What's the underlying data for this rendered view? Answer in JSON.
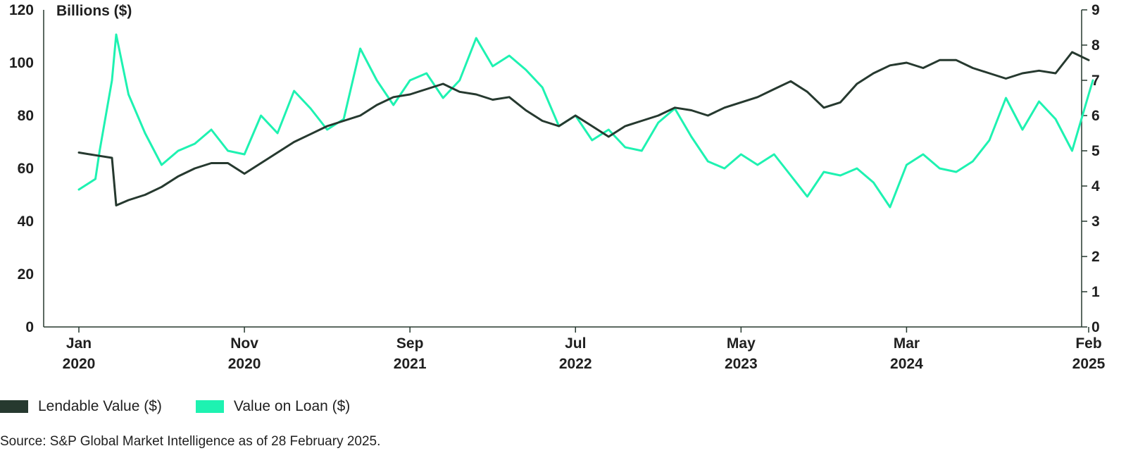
{
  "chart_data": {
    "type": "line",
    "y_axis_label": "Billions ($)",
    "y_left": {
      "min": 0,
      "max": 120,
      "ticks": [
        "0",
        "20",
        "40",
        "60",
        "80",
        "100",
        "120"
      ]
    },
    "y_right": {
      "min": 0,
      "max": 9,
      "ticks": [
        "0",
        "1",
        "2",
        "3",
        "4",
        "5",
        "6",
        "7",
        "8",
        "9"
      ]
    },
    "x_ticks": [
      {
        "date": "2020-01",
        "month": "Jan",
        "year": "2020"
      },
      {
        "date": "2020-11",
        "month": "Nov",
        "year": "2020"
      },
      {
        "date": "2021-09",
        "month": "Sep",
        "year": "2021"
      },
      {
        "date": "2022-07",
        "month": "Jul",
        "year": "2022"
      },
      {
        "date": "2023-05",
        "month": "May",
        "year": "2023"
      },
      {
        "date": "2024-03",
        "month": "Mar",
        "year": "2024"
      },
      {
        "date": "2025-02",
        "month": "Feb",
        "year": "2025"
      }
    ],
    "x_range": [
      "2020-01",
      "2025-02"
    ],
    "series": [
      {
        "name": "Lendable Value ($)",
        "axis": "left",
        "color": "#26392f",
        "points": [
          [
            "2020-01",
            66
          ],
          [
            "2020-02",
            65
          ],
          [
            "2020-03",
            64
          ],
          [
            "2020-03",
            46
          ],
          [
            "2020-04",
            48
          ],
          [
            "2020-05",
            50
          ],
          [
            "2020-06",
            53
          ],
          [
            "2020-07",
            57
          ],
          [
            "2020-08",
            60
          ],
          [
            "2020-09",
            62
          ],
          [
            "2020-10",
            62
          ],
          [
            "2020-11",
            58
          ],
          [
            "2020-12",
            62
          ],
          [
            "2021-01",
            66
          ],
          [
            "2021-02",
            70
          ],
          [
            "2021-03",
            73
          ],
          [
            "2021-04",
            76
          ],
          [
            "2021-05",
            78
          ],
          [
            "2021-06",
            80
          ],
          [
            "2021-07",
            84
          ],
          [
            "2021-08",
            87
          ],
          [
            "2021-09",
            88
          ],
          [
            "2021-10",
            90
          ],
          [
            "2021-11",
            92
          ],
          [
            "2021-12",
            89
          ],
          [
            "2022-01",
            88
          ],
          [
            "2022-02",
            86
          ],
          [
            "2022-03",
            87
          ],
          [
            "2022-04",
            82
          ],
          [
            "2022-05",
            78
          ],
          [
            "2022-06",
            76
          ],
          [
            "2022-07",
            80
          ],
          [
            "2022-08",
            76
          ],
          [
            "2022-09",
            72
          ],
          [
            "2022-10",
            76
          ],
          [
            "2022-11",
            78
          ],
          [
            "2022-12",
            80
          ],
          [
            "2023-01",
            83
          ],
          [
            "2023-02",
            82
          ],
          [
            "2023-03",
            80
          ],
          [
            "2023-04",
            83
          ],
          [
            "2023-05",
            85
          ],
          [
            "2023-06",
            87
          ],
          [
            "2023-07",
            90
          ],
          [
            "2023-08",
            93
          ],
          [
            "2023-09",
            89
          ],
          [
            "2023-10",
            83
          ],
          [
            "2023-11",
            85
          ],
          [
            "2023-12",
            92
          ],
          [
            "2024-01",
            96
          ],
          [
            "2024-02",
            99
          ],
          [
            "2024-03",
            100
          ],
          [
            "2024-04",
            98
          ],
          [
            "2024-05",
            101
          ],
          [
            "2024-06",
            101
          ],
          [
            "2024-07",
            98
          ],
          [
            "2024-08",
            96
          ],
          [
            "2024-09",
            94
          ],
          [
            "2024-10",
            96
          ],
          [
            "2024-11",
            97
          ],
          [
            "2024-12",
            96
          ],
          [
            "2025-01",
            104
          ],
          [
            "2025-02",
            101
          ]
        ]
      },
      {
        "name": "Value on Loan ($)",
        "axis": "right",
        "color": "#1ef2b1",
        "points": [
          [
            "2020-01",
            3.9
          ],
          [
            "2020-02",
            4.2
          ],
          [
            "2020-02",
            5.0
          ],
          [
            "2020-03",
            7.0
          ],
          [
            "2020-03",
            8.3
          ],
          [
            "2020-04",
            6.6
          ],
          [
            "2020-05",
            5.5
          ],
          [
            "2020-06",
            4.6
          ],
          [
            "2020-07",
            5.0
          ],
          [
            "2020-08",
            5.2
          ],
          [
            "2020-09",
            5.6
          ],
          [
            "2020-10",
            5.0
          ],
          [
            "2020-11",
            4.9
          ],
          [
            "2020-12",
            6.0
          ],
          [
            "2021-01",
            5.5
          ],
          [
            "2021-02",
            6.7
          ],
          [
            "2021-03",
            6.2
          ],
          [
            "2021-04",
            5.6
          ],
          [
            "2021-05",
            5.9
          ],
          [
            "2021-06",
            7.9
          ],
          [
            "2021-07",
            7.0
          ],
          [
            "2021-08",
            6.3
          ],
          [
            "2021-09",
            7.0
          ],
          [
            "2021-10",
            7.2
          ],
          [
            "2021-11",
            6.5
          ],
          [
            "2021-12",
            7.0
          ],
          [
            "2022-01",
            8.2
          ],
          [
            "2022-02",
            7.4
          ],
          [
            "2022-03",
            7.7
          ],
          [
            "2022-04",
            7.3
          ],
          [
            "2022-05",
            6.8
          ],
          [
            "2022-06",
            5.7
          ],
          [
            "2022-07",
            6.0
          ],
          [
            "2022-08",
            5.3
          ],
          [
            "2022-09",
            5.6
          ],
          [
            "2022-10",
            5.1
          ],
          [
            "2022-11",
            5.0
          ],
          [
            "2022-12",
            5.8
          ],
          [
            "2023-01",
            6.2
          ],
          [
            "2023-02",
            5.4
          ],
          [
            "2023-03",
            4.7
          ],
          [
            "2023-04",
            4.5
          ],
          [
            "2023-05",
            4.9
          ],
          [
            "2023-06",
            4.6
          ],
          [
            "2023-07",
            4.9
          ],
          [
            "2023-08",
            4.3
          ],
          [
            "2023-09",
            3.7
          ],
          [
            "2023-10",
            4.4
          ],
          [
            "2023-11",
            4.3
          ],
          [
            "2023-12",
            4.5
          ],
          [
            "2024-01",
            4.1
          ],
          [
            "2024-02",
            3.4
          ],
          [
            "2024-03",
            4.6
          ],
          [
            "2024-04",
            4.9
          ],
          [
            "2024-05",
            4.5
          ],
          [
            "2024-06",
            4.4
          ],
          [
            "2024-07",
            4.7
          ],
          [
            "2024-08",
            5.3
          ],
          [
            "2024-09",
            6.5
          ],
          [
            "2024-10",
            5.6
          ],
          [
            "2024-11",
            6.4
          ],
          [
            "2024-12",
            5.9
          ],
          [
            "2025-01",
            5.0
          ],
          [
            "2025-02",
            6.6
          ],
          [
            "2025-02",
            7.0
          ]
        ]
      }
    ],
    "legend_position": "bottom-left",
    "grid": false
  },
  "legend": {
    "lendable_label": "Lendable Value ($)",
    "loan_label": "Value on Loan ($)"
  },
  "source": "Source: S&P Global Market Intelligence as of 28 February 2025."
}
